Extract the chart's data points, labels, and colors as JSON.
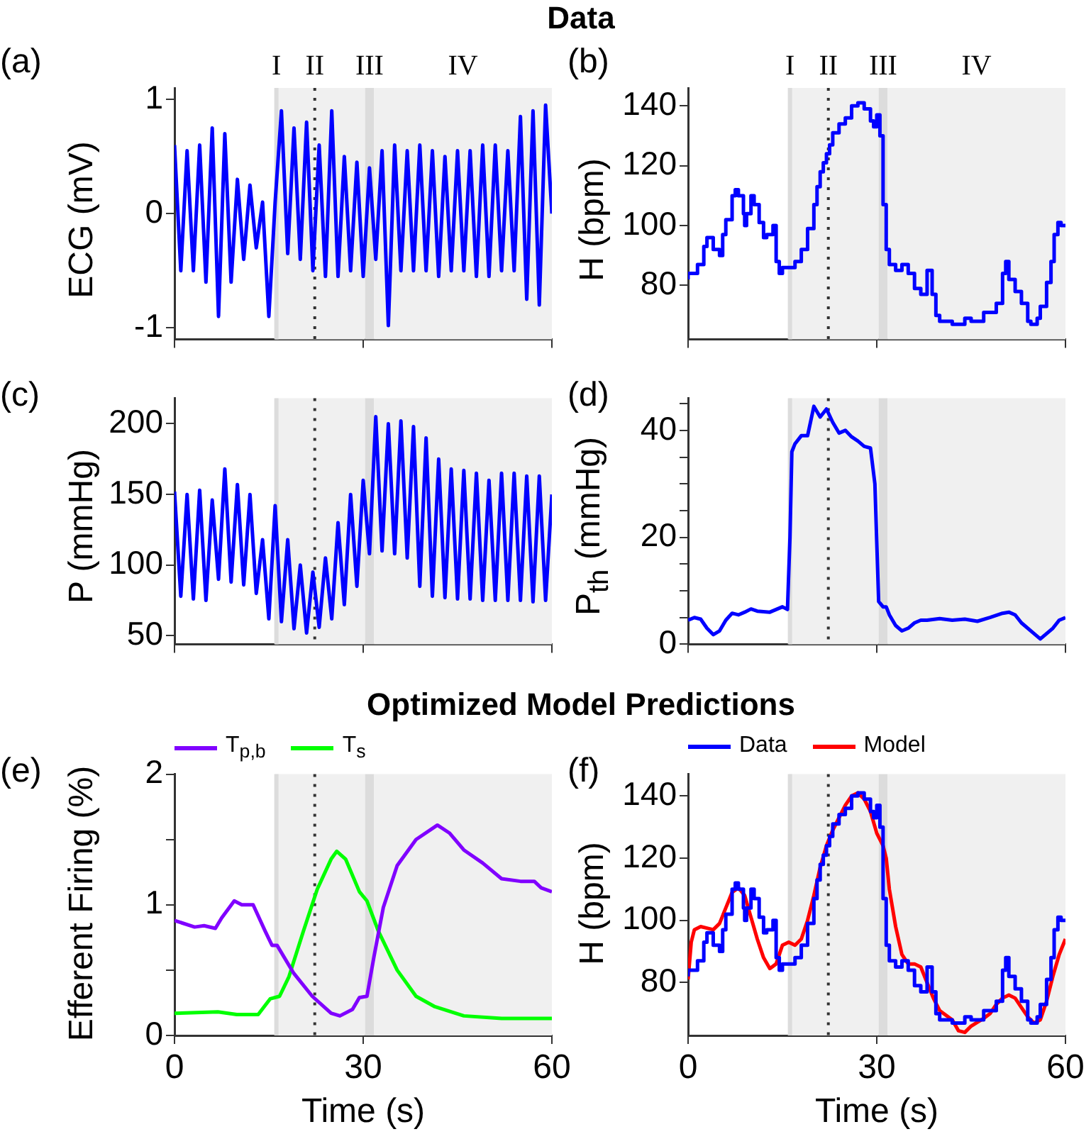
{
  "chart_data": [
    {
      "type": "line",
      "title": "Data",
      "ylabel": "ECG (mV)",
      "annotations": [
        "(a)"
      ],
      "color": "#0000ff",
      "xlim": [
        0,
        60
      ],
      "xticks": [
        0,
        30,
        60
      ],
      "ylim": [
        -1.1,
        1.1
      ],
      "yticks": [
        -1,
        0,
        1
      ],
      "tick_labels": "y",
      "x": [
        0,
        1,
        2,
        3,
        4,
        5,
        6,
        7,
        8,
        9,
        10,
        11,
        12,
        13,
        14,
        15,
        16,
        17,
        18,
        19,
        20,
        21,
        22,
        23,
        24,
        25,
        26,
        27,
        28,
        29,
        30,
        31,
        32,
        33,
        34,
        35,
        36,
        37,
        38,
        39,
        40,
        41,
        42,
        43,
        44,
        45,
        46,
        47,
        48,
        49,
        50,
        51,
        52,
        53,
        54,
        55,
        56,
        57,
        58,
        59,
        60
      ],
      "values": [
        0.6,
        -0.5,
        0.55,
        -0.5,
        0.6,
        -0.6,
        0.75,
        -0.9,
        0.7,
        -0.6,
        0.3,
        -0.4,
        0.25,
        -0.3,
        0.1,
        -0.9,
        0.1,
        0.9,
        -0.35,
        0.75,
        -0.4,
        0.8,
        -0.5,
        0.6,
        -0.55,
        0.9,
        -0.55,
        0.5,
        -0.5,
        0.45,
        -0.55,
        0.4,
        -0.4,
        0.55,
        -0.98,
        0.6,
        -0.5,
        0.55,
        -0.5,
        0.6,
        -0.5,
        0.55,
        -0.55,
        0.5,
        -0.5,
        0.55,
        -0.5,
        0.55,
        -0.55,
        0.6,
        -0.55,
        0.6,
        -0.5,
        0.55,
        -0.5,
        0.85,
        -0.75,
        0.9,
        -0.8,
        0.95,
        0
      ],
      "bands": [
        {
          "axis": "x",
          "from": 16,
          "to": 30.3,
          "color": "#f0f0f0"
        },
        {
          "axis": "x",
          "from": 30.3,
          "to": 31.7,
          "color": "#dcdcdc",
          "label": "III"
        },
        {
          "axis": "x",
          "from": 31.7,
          "to": 60,
          "color": "#f0f0f0",
          "label": "IV"
        }
      ],
      "ref_lines": [
        {
          "axis": "x",
          "value": 16.2,
          "color": "#dcdcdc",
          "line_style": "solid",
          "label": "I"
        },
        {
          "axis": "x",
          "value": 22.3,
          "color": "#333333",
          "line_style": "dotted",
          "label": "II"
        }
      ]
    },
    {
      "type": "step",
      "ylabel": "H (bpm)",
      "annotations": [
        "(b)"
      ],
      "color": "#0000ff",
      "xlim": [
        0,
        60
      ],
      "xticks": [
        0,
        30,
        60
      ],
      "ylim": [
        62,
        146
      ],
      "yticks": [
        80,
        100,
        120,
        140
      ],
      "tick_labels": "y",
      "x": [
        0,
        1.5,
        2.5,
        3,
        4,
        5,
        5.5,
        6,
        7,
        7.5,
        8,
        8.8,
        9,
        9.3,
        10,
        10.5,
        11.3,
        12,
        12.5,
        13.5,
        14,
        14.5,
        15,
        17,
        18,
        19,
        20,
        20.5,
        21,
        21.5,
        22,
        22.5,
        23,
        24,
        25,
        26,
        27,
        28,
        29,
        29.5,
        30,
        30.5,
        31,
        31.5,
        32,
        33,
        34,
        35,
        36,
        37,
        38,
        38.8,
        39.4,
        40,
        42,
        44,
        45,
        47,
        49,
        50,
        50.5,
        51,
        52,
        53,
        54,
        54.5,
        55.5,
        56,
        57,
        57.7,
        58.2,
        58.8,
        59.3,
        60
      ],
      "values": [
        82,
        84,
        87,
        93,
        96,
        92,
        90,
        97,
        102,
        110,
        112,
        110,
        104,
        100,
        104,
        110,
        107,
        101,
        96,
        97,
        100,
        88,
        84,
        86,
        88,
        92,
        99,
        107,
        113,
        118,
        121,
        124,
        127,
        131,
        134,
        136,
        140,
        141,
        139,
        135,
        133,
        137,
        130,
        107,
        92,
        87,
        85,
        87,
        84,
        79,
        77,
        85,
        77,
        70,
        68,
        67,
        69,
        68,
        71,
        74,
        84,
        88,
        82,
        78,
        74,
        68,
        67,
        69,
        73,
        81,
        88,
        97,
        101,
        100
      ],
      "bands": [
        {
          "axis": "x",
          "from": 16,
          "to": 30.3,
          "color": "#f0f0f0"
        },
        {
          "axis": "x",
          "from": 30.3,
          "to": 31.7,
          "color": "#dcdcdc",
          "label": "III"
        },
        {
          "axis": "x",
          "from": 31.7,
          "to": 60,
          "color": "#f0f0f0",
          "label": "IV"
        }
      ],
      "ref_lines": [
        {
          "axis": "x",
          "value": 16.2,
          "color": "#dcdcdc",
          "line_style": "solid",
          "label": "I"
        },
        {
          "axis": "x",
          "value": 22.3,
          "color": "#333333",
          "line_style": "dotted",
          "label": "II"
        }
      ]
    },
    {
      "type": "line",
      "ylabel": "P (mmHg)",
      "annotations": [
        "(c)"
      ],
      "color": "#0000ff",
      "xlim": [
        0,
        60
      ],
      "xticks": [
        0,
        30,
        60
      ],
      "ylim": [
        44,
        218
      ],
      "yticks": [
        50,
        100,
        150,
        200
      ],
      "tick_labels": "y",
      "x": [
        0,
        1,
        2,
        3,
        4,
        5,
        6,
        7,
        8,
        9,
        10,
        11,
        12,
        13,
        14,
        15,
        16,
        17,
        18,
        19,
        20,
        21,
        22,
        23,
        24,
        25,
        26,
        27,
        28,
        29,
        30,
        31,
        32,
        33,
        34,
        35,
        36,
        37,
        38,
        39,
        40,
        41,
        42,
        43,
        44,
        45,
        46,
        47,
        48,
        49,
        50,
        51,
        52,
        53,
        54,
        55,
        56,
        57,
        58,
        59,
        60
      ],
      "values": [
        152,
        78,
        150,
        76,
        153,
        75,
        146,
        90,
        168,
        88,
        157,
        86,
        150,
        80,
        118,
        62,
        142,
        60,
        118,
        55,
        100,
        52,
        95,
        56,
        105,
        62,
        130,
        72,
        150,
        85,
        160,
        108,
        205,
        110,
        200,
        108,
        202,
        105,
        198,
        85,
        190,
        78,
        175,
        77,
        168,
        76,
        167,
        76,
        165,
        75,
        160,
        75,
        165,
        75,
        165,
        75,
        163,
        74,
        163,
        75,
        150
      ],
      "bands": [
        {
          "axis": "x",
          "from": 16,
          "to": 30.3,
          "color": "#f0f0f0"
        },
        {
          "axis": "x",
          "from": 30.3,
          "to": 31.7,
          "color": "#dcdcdc"
        },
        {
          "axis": "x",
          "from": 31.7,
          "to": 60,
          "color": "#f0f0f0"
        }
      ],
      "ref_lines": [
        {
          "axis": "x",
          "value": 16.2,
          "color": "#dcdcdc",
          "line_style": "solid"
        },
        {
          "axis": "x",
          "value": 22.3,
          "color": "#333333",
          "line_style": "dotted"
        }
      ]
    },
    {
      "type": "line",
      "ylabel": "P$_{th}$ (mmHg)",
      "annotations": [
        "(d)"
      ],
      "color": "#0000ff",
      "xlim": [
        0,
        60
      ],
      "xticks": [
        0,
        30,
        60
      ],
      "ylim": [
        0,
        46
      ],
      "yticks": [
        0,
        {
          "value": 5,
          "label": null
        },
        {
          "value": 10,
          "label": null
        },
        {
          "value": 15,
          "label": null
        },
        20,
        {
          "value": 25,
          "label": null
        },
        {
          "value": 30,
          "label": null
        },
        {
          "value": 35,
          "label": null
        },
        40,
        {
          "value": 45,
          "label": null
        }
      ],
      "tick_labels": "y",
      "x": [
        0,
        1,
        2,
        3,
        4,
        5,
        6,
        7,
        8,
        9,
        10,
        11,
        13,
        14,
        15,
        15.8,
        16.2,
        16.5,
        17,
        18,
        19,
        20,
        21,
        22,
        23,
        24,
        25,
        26,
        27,
        28,
        29,
        29.7,
        30.3,
        31,
        31.5,
        32,
        33,
        34,
        35,
        36,
        37,
        38,
        40,
        42,
        44,
        46,
        48,
        50,
        51,
        52,
        53,
        55,
        56,
        57,
        58,
        59,
        60
      ],
      "values": [
        4.5,
        5,
        4.7,
        3,
        1.8,
        2.5,
        4.5,
        5.8,
        5.5,
        6,
        6.6,
        6.2,
        6,
        6.5,
        7,
        6.5,
        20,
        36,
        37.5,
        39,
        39,
        44.5,
        42.5,
        44,
        41.5,
        39.5,
        40,
        38.8,
        38,
        37,
        36.7,
        30,
        8,
        7,
        7,
        5.5,
        3.5,
        2.5,
        3,
        4,
        4.5,
        4.5,
        4.8,
        4.5,
        4.7,
        4.3,
        5,
        5.8,
        6,
        5.5,
        4,
        2,
        1,
        2,
        3,
        4.5,
        5
      ],
      "bands": [
        {
          "axis": "x",
          "from": 16,
          "to": 30.3,
          "color": "#f0f0f0"
        },
        {
          "axis": "x",
          "from": 30.3,
          "to": 31.7,
          "color": "#dcdcdc"
        },
        {
          "axis": "x",
          "from": 31.7,
          "to": 60,
          "color": "#f0f0f0"
        }
      ],
      "ref_lines": [
        {
          "axis": "x",
          "value": 16.2,
          "color": "#dcdcdc",
          "line_style": "solid"
        },
        {
          "axis": "x",
          "value": 22.3,
          "color": "#333333",
          "line_style": "dotted"
        }
      ]
    },
    {
      "type": "line",
      "title": "Optimized Model Predictions",
      "xlabel": "Time (s)",
      "ylabel": "Efferent Firing (%)",
      "annotations": [
        "(e)"
      ],
      "legend": "top",
      "xlim": [
        0,
        60
      ],
      "xticks": [
        0,
        30,
        60
      ],
      "ylim": [
        0,
        2
      ],
      "yticks": [
        0,
        {
          "value": 0.5,
          "label": null
        },
        1,
        {
          "value": 1.5,
          "label": null
        },
        2
      ],
      "series": [
        {
          "name": "T$_{p,b}$",
          "color": "#8000ff",
          "x": [
            0,
            3.2,
            4.7,
            6.5,
            7.5,
            9.5,
            10.7,
            12.5,
            14.4,
            15.5,
            16.3,
            18.9,
            21.9,
            24.9,
            26.3,
            28.3,
            29.4,
            30.6,
            31.7,
            33.2,
            35.4,
            38.4,
            41.8,
            43.7,
            46,
            49,
            52,
            55,
            57.2,
            58.3,
            60
          ],
          "values": [
            0.88,
            0.83,
            0.84,
            0.82,
            0.9,
            1.03,
            1,
            1,
            0.8,
            0.69,
            0.69,
            0.48,
            0.3,
            0.17,
            0.15,
            0.2,
            0.29,
            0.3,
            0.6,
            0.98,
            1.3,
            1.5,
            1.61,
            1.55,
            1.42,
            1.32,
            1.2,
            1.18,
            1.18,
            1.13,
            1.1
          ]
        },
        {
          "name": "T$_{s}$",
          "color": "#00ff00",
          "x": [
            0,
            6.9,
            9.9,
            13.3,
            15.2,
            16.7,
            18.2,
            20.5,
            22.7,
            24.9,
            25.8,
            27.2,
            29.4,
            30.6,
            32.4,
            35.4,
            38.4,
            41.4,
            46,
            52,
            60
          ],
          "values": [
            0.17,
            0.18,
            0.16,
            0.16,
            0.28,
            0.3,
            0.45,
            0.8,
            1.12,
            1.35,
            1.41,
            1.35,
            1.1,
            1.03,
            0.8,
            0.5,
            0.3,
            0.22,
            0.15,
            0.13,
            0.13
          ]
        }
      ],
      "bands": [
        {
          "axis": "x",
          "from": 16,
          "to": 30.3,
          "color": "#f0f0f0"
        },
        {
          "axis": "x",
          "from": 30.3,
          "to": 31.7,
          "color": "#dcdcdc"
        },
        {
          "axis": "x",
          "from": 31.7,
          "to": 60,
          "color": "#f0f0f0"
        }
      ],
      "ref_lines": [
        {
          "axis": "x",
          "value": 16.2,
          "color": "#dcdcdc",
          "line_style": "solid"
        },
        {
          "axis": "x",
          "value": 22.3,
          "color": "#333333",
          "line_style": "dotted"
        }
      ]
    },
    {
      "type": "line",
      "xlabel": "Time (s)",
      "ylabel": "H (bpm)",
      "annotations": [
        "(f)"
      ],
      "legend": "top",
      "xlim": [
        0,
        60
      ],
      "xticks": [
        0,
        30,
        60
      ],
      "ylim": [
        63,
        147
      ],
      "yticks": [
        80,
        100,
        120,
        140
      ],
      "series": [
        {
          "name": "Data",
          "type": "step",
          "color": "#0000ff",
          "x": [
            0,
            1.5,
            2.5,
            3,
            4,
            5,
            5.5,
            6,
            7,
            7.5,
            8,
            8.8,
            9,
            9.3,
            10,
            10.5,
            11.3,
            12,
            12.5,
            13.5,
            14,
            14.5,
            15,
            17,
            18,
            19,
            20,
            20.5,
            21,
            21.5,
            22,
            22.5,
            23,
            24,
            25,
            26,
            27,
            28,
            29,
            29.5,
            30,
            30.5,
            31,
            31.5,
            32,
            33,
            34,
            35,
            36,
            37,
            38,
            38.8,
            39.4,
            40,
            42,
            44,
            45,
            47,
            49,
            50,
            50.5,
            51,
            52,
            53,
            54,
            54.5,
            55.5,
            56,
            57,
            57.7,
            58.2,
            58.8,
            59.3,
            60
          ],
          "values": [
            82,
            84,
            87,
            93,
            96,
            92,
            90,
            97,
            102,
            110,
            112,
            110,
            104,
            100,
            104,
            110,
            107,
            101,
            96,
            97,
            100,
            88,
            84,
            86,
            88,
            92,
            99,
            107,
            113,
            118,
            121,
            124,
            127,
            131,
            134,
            136,
            140,
            141,
            139,
            135,
            133,
            137,
            130,
            107,
            92,
            87,
            85,
            87,
            84,
            79,
            77,
            85,
            77,
            70,
            68,
            67,
            69,
            68,
            71,
            74,
            84,
            88,
            82,
            78,
            74,
            68,
            67,
            69,
            73,
            81,
            88,
            97,
            101,
            100
          ]
        },
        {
          "name": "Model",
          "type": "line",
          "color": "#ff0000",
          "x": [
            0,
            0.5,
            1,
            2,
            3,
            4,
            5,
            6,
            7,
            8,
            9,
            10,
            11,
            12,
            13,
            14,
            15,
            16,
            17,
            18,
            19,
            20,
            21,
            22,
            23,
            24,
            25,
            26,
            27,
            28,
            29,
            30,
            31,
            31.5,
            32,
            33,
            34,
            35,
            36,
            37,
            38,
            39,
            40,
            42,
            43,
            44,
            45,
            47,
            48,
            49,
            50,
            51,
            52,
            53,
            54,
            55,
            56,
            57,
            58,
            59,
            60
          ],
          "values": [
            81,
            93,
            97,
            98,
            97.5,
            97,
            99,
            104,
            109,
            110.5,
            108,
            101,
            94,
            88,
            84.5,
            86,
            92,
            93,
            92,
            94,
            100,
            108,
            117,
            124,
            129,
            133,
            137,
            140,
            141,
            139,
            135,
            128,
            124,
            120,
            110,
            98,
            89,
            86,
            86,
            85,
            80,
            75,
            71,
            68,
            64.5,
            64,
            66,
            68.5,
            70,
            73,
            75,
            76,
            75,
            72,
            69,
            67,
            68,
            74,
            82,
            89,
            94
          ]
        }
      ],
      "bands": [
        {
          "axis": "x",
          "from": 16,
          "to": 30.3,
          "color": "#f0f0f0"
        },
        {
          "axis": "x",
          "from": 30.3,
          "to": 31.7,
          "color": "#dcdcdc"
        },
        {
          "axis": "x",
          "from": 31.7,
          "to": 60,
          "color": "#f0f0f0"
        }
      ],
      "ref_lines": [
        {
          "axis": "x",
          "value": 16.2,
          "color": "#dcdcdc",
          "line_style": "solid"
        },
        {
          "axis": "x",
          "value": 22.3,
          "color": "#333333",
          "line_style": "dotted"
        }
      ]
    }
  ]
}
